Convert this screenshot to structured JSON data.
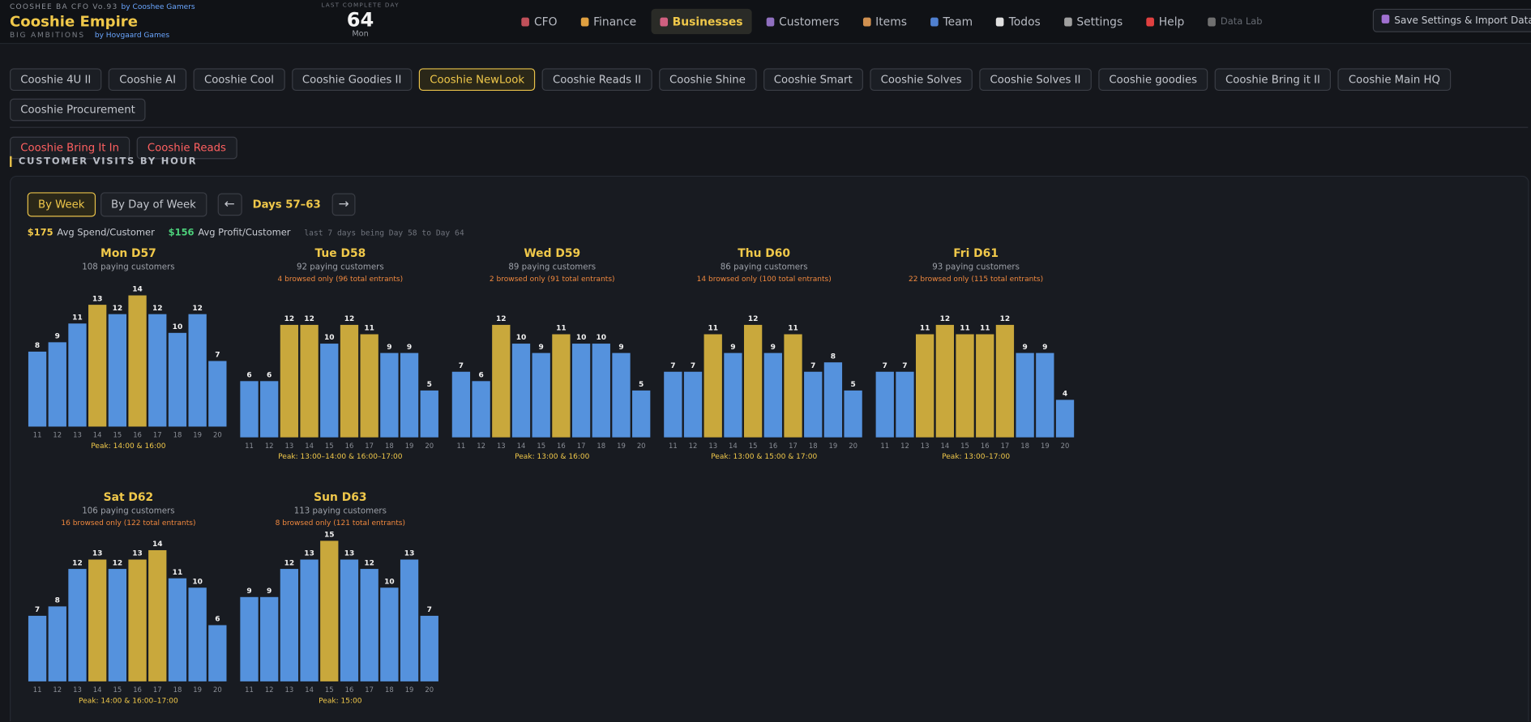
{
  "header": {
    "app_label": "COOSHEE BA CFO Vo.93",
    "app_by": "by Cooshee Gamers",
    "title": "Cooshie Empire",
    "subtitle": "BIG AMBITIONS",
    "subtitle_by": "by Hovgaard Games",
    "day_label": "LAST COMPLETE DAY",
    "day_number": "64",
    "day_name": "Mon",
    "save_button": "Save Settings & Import Data"
  },
  "nav": [
    {
      "label": "CFO",
      "color": "#c0505a"
    },
    {
      "label": "Finance",
      "color": "#e0a040"
    },
    {
      "label": "Businesses",
      "color": "#d06080",
      "active": true
    },
    {
      "label": "Customers",
      "color": "#9070c0"
    },
    {
      "label": "Items",
      "color": "#d09050"
    },
    {
      "label": "Team",
      "color": "#5080d0"
    },
    {
      "label": "Todos",
      "color": "#e0e0e0"
    },
    {
      "label": "Settings",
      "color": "#a0a0a0"
    },
    {
      "label": "Help",
      "color": "#e04040"
    },
    {
      "label": "Data Lab",
      "color": "#707070",
      "dim": true
    }
  ],
  "business_tabs": [
    "Cooshie 4U II",
    "Cooshie AI",
    "Cooshie Cool",
    "Cooshie Goodies II",
    "Cooshie NewLook",
    "Cooshie Reads II",
    "Cooshie Shine",
    "Cooshie Smart",
    "Cooshie Solves",
    "Cooshie Solves II",
    "Cooshie goodies",
    "Cooshie Bring it II",
    "Cooshie Main HQ",
    "Cooshie Procurement"
  ],
  "active_tab": 4,
  "alert_tabs": [
    "Cooshie Bring It In",
    "Cooshie Reads"
  ],
  "section_title": "CUSTOMER VISITS BY HOUR",
  "view_buttons": [
    "By Week",
    "By Day of Week"
  ],
  "period": {
    "prev": "←",
    "label": "Days 57–63",
    "next": "→"
  },
  "stats": {
    "spend": "$175",
    "spend_label": "Avg Spend/Customer",
    "profit": "$156",
    "profit_label": "Avg Profit/Customer",
    "note": "last 7 days being Day 58 to Day 64"
  },
  "chart_data": [
    {
      "type": "bar",
      "title": "Mon D57",
      "subtitle": "108 paying customers",
      "categories": [
        "11",
        "12",
        "13",
        "14",
        "15",
        "16",
        "17",
        "18",
        "19",
        "20"
      ],
      "values": [
        8,
        9,
        11,
        13,
        12,
        14,
        12,
        10,
        12,
        7
      ],
      "colors": [
        "#5592dd",
        "#5592dd",
        "#5592dd",
        "#c9a83c",
        "#5592dd",
        "#c9a83c",
        "#5592dd",
        "#5592dd",
        "#5592dd",
        "#5592dd"
      ],
      "peak": "Peak: 14:00 & 16:00"
    },
    {
      "type": "bar",
      "title": "Tue D58",
      "subtitle": "92 paying customers",
      "note": "4 browsed only (96 total entrants)",
      "categories": [
        "11",
        "12",
        "13",
        "14",
        "15",
        "16",
        "17",
        "18",
        "19",
        "20"
      ],
      "values": [
        6,
        6,
        12,
        12,
        10,
        12,
        11,
        9,
        9,
        5
      ],
      "colors": [
        "#5592dd",
        "#5592dd",
        "#c9a83c",
        "#c9a83c",
        "#5592dd",
        "#c9a83c",
        "#c9a83c",
        "#5592dd",
        "#5592dd",
        "#5592dd"
      ],
      "peak": "Peak: 13:00–14:00 & 16:00–17:00"
    },
    {
      "type": "bar",
      "title": "Wed D59",
      "subtitle": "89 paying customers",
      "note": "2 browsed only (91 total entrants)",
      "categories": [
        "11",
        "12",
        "13",
        "14",
        "15",
        "16",
        "17",
        "18",
        "19",
        "20"
      ],
      "values": [
        7,
        6,
        12,
        10,
        9,
        11,
        10,
        10,
        9,
        5
      ],
      "colors": [
        "#5592dd",
        "#5592dd",
        "#c9a83c",
        "#5592dd",
        "#5592dd",
        "#c9a83c",
        "#5592dd",
        "#5592dd",
        "#5592dd",
        "#5592dd"
      ],
      "peak": "Peak: 13:00 & 16:00"
    },
    {
      "type": "bar",
      "title": "Thu D60",
      "subtitle": "86 paying customers",
      "note": "14 browsed only (100 total entrants)",
      "categories": [
        "11",
        "12",
        "13",
        "14",
        "15",
        "16",
        "17",
        "18",
        "19",
        "20"
      ],
      "values": [
        7,
        7,
        11,
        9,
        12,
        9,
        11,
        7,
        8,
        5
      ],
      "colors": [
        "#5592dd",
        "#5592dd",
        "#c9a83c",
        "#5592dd",
        "#c9a83c",
        "#5592dd",
        "#c9a83c",
        "#5592dd",
        "#5592dd",
        "#5592dd"
      ],
      "peak": "Peak: 13:00 & 15:00 & 17:00"
    },
    {
      "type": "bar",
      "title": "Fri D61",
      "subtitle": "93 paying customers",
      "note": "22 browsed only (115 total entrants)",
      "categories": [
        "11",
        "12",
        "13",
        "14",
        "15",
        "16",
        "17",
        "18",
        "19",
        "20"
      ],
      "values": [
        7,
        7,
        11,
        12,
        11,
        11,
        12,
        9,
        9,
        4
      ],
      "colors": [
        "#5592dd",
        "#5592dd",
        "#c9a83c",
        "#c9a83c",
        "#c9a83c",
        "#c9a83c",
        "#c9a83c",
        "#5592dd",
        "#5592dd",
        "#5592dd"
      ],
      "peak": "Peak: 13:00–17:00"
    },
    {
      "type": "bar",
      "title": "Sat D62",
      "subtitle": "106 paying customers",
      "note": "16 browsed only (122 total entrants)",
      "categories": [
        "11",
        "12",
        "13",
        "14",
        "15",
        "16",
        "17",
        "18",
        "19",
        "20"
      ],
      "values": [
        7,
        8,
        12,
        13,
        12,
        13,
        14,
        11,
        10,
        6
      ],
      "colors": [
        "#5592dd",
        "#5592dd",
        "#5592dd",
        "#c9a83c",
        "#5592dd",
        "#c9a83c",
        "#c9a83c",
        "#5592dd",
        "#5592dd",
        "#5592dd"
      ],
      "peak": "Peak: 14:00 & 16:00–17:00"
    },
    {
      "type": "bar",
      "title": "Sun D63",
      "subtitle": "113 paying customers",
      "note": "8 browsed only (121 total entrants)",
      "categories": [
        "11",
        "12",
        "13",
        "14",
        "15",
        "16",
        "17",
        "18",
        "19",
        "20"
      ],
      "values": [
        9,
        9,
        12,
        13,
        15,
        13,
        12,
        10,
        13,
        7
      ],
      "colors": [
        "#5592dd",
        "#5592dd",
        "#5592dd",
        "#5592dd",
        "#c9a83c",
        "#5592dd",
        "#5592dd",
        "#5592dd",
        "#5592dd",
        "#5592dd"
      ],
      "peak": "Peak: 15:00"
    }
  ]
}
